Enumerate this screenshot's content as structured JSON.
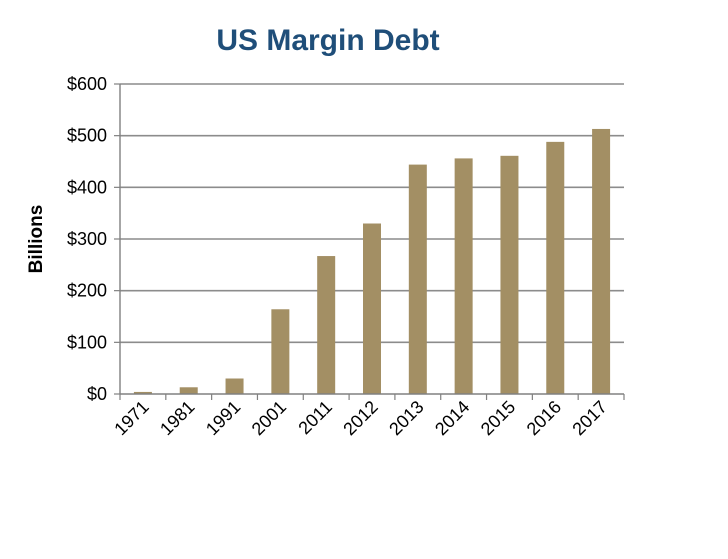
{
  "chart_data": {
    "type": "bar",
    "title": "US Margin Debt",
    "ylabel": "Billions",
    "xlabel": "",
    "categories": [
      "1971",
      "1981",
      "1991",
      "2001",
      "2011",
      "2012",
      "2013",
      "2014",
      "2015",
      "2016",
      "2017"
    ],
    "values": [
      4,
      13,
      30,
      164,
      267,
      330,
      444,
      456,
      461,
      488,
      513
    ],
    "ylim": [
      0,
      600
    ],
    "yticks": [
      0,
      100,
      200,
      300,
      400,
      500,
      600
    ],
    "ytick_labels": [
      "$0",
      "$100",
      "$200",
      "$300",
      "$400",
      "$500",
      "$600"
    ],
    "grid": true,
    "legend": "none",
    "colors": {
      "bar": "#a38f64",
      "title": "#1f4e79",
      "grid": "#8c8c8c",
      "axis": "#808080"
    }
  }
}
